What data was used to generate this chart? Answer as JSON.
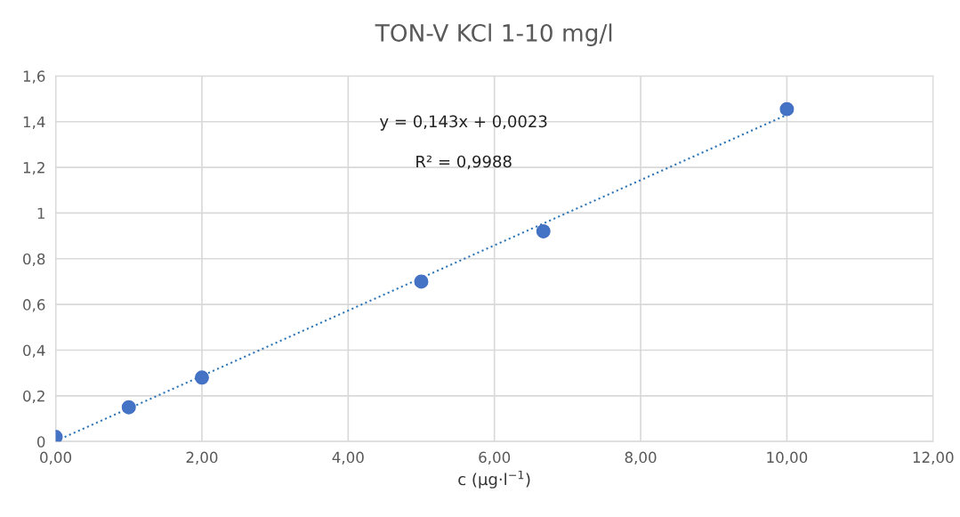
{
  "chart_data": {
    "type": "scatter",
    "title": "TON-V KCl 1-10 mg/l",
    "xlabel": "c (µg·l$^{−1}$)",
    "x": [
      0,
      1,
      2,
      5,
      6.67,
      10
    ],
    "series": [
      {
        "color": "#4472c4",
        "values": [
          0.02,
          0.15,
          0.28,
          0.7,
          0.92,
          1.455
        ],
        "marker": "circle"
      },
      {
        "type": "line",
        "color": "#2e75b6",
        "x": [
          0,
          10
        ],
        "values": [
          0.002,
          1.43
        ],
        "line_style": "dotted",
        "marker": "none"
      }
    ],
    "annotations": [
      "y = 0,143x + 0,0023",
      "R² = 0,9988"
    ],
    "xlim": [
      0,
      12
    ],
    "ylim": [
      0,
      1.6
    ],
    "xticks": [
      {
        "value": 0,
        "label": "0,00"
      },
      {
        "value": 2,
        "label": "2,00"
      },
      {
        "value": 4,
        "label": "4,00"
      },
      {
        "value": 6,
        "label": "6,00"
      },
      {
        "value": 8,
        "label": "8,00"
      },
      {
        "value": 10,
        "label": "10,00"
      },
      {
        "value": 12,
        "label": "12,00"
      }
    ],
    "yticks": [
      0,
      {
        "value": 0.2,
        "label": "0,2"
      },
      {
        "value": 0.4,
        "label": "0,4"
      },
      {
        "value": 0.6,
        "label": "0,6"
      },
      {
        "value": 0.8,
        "label": "0,8"
      },
      1,
      {
        "value": 1.2,
        "label": "1,2"
      },
      {
        "value": 1.4,
        "label": "1,4"
      },
      {
        "value": 1.6,
        "label": "1,6"
      }
    ],
    "grid": true
  }
}
